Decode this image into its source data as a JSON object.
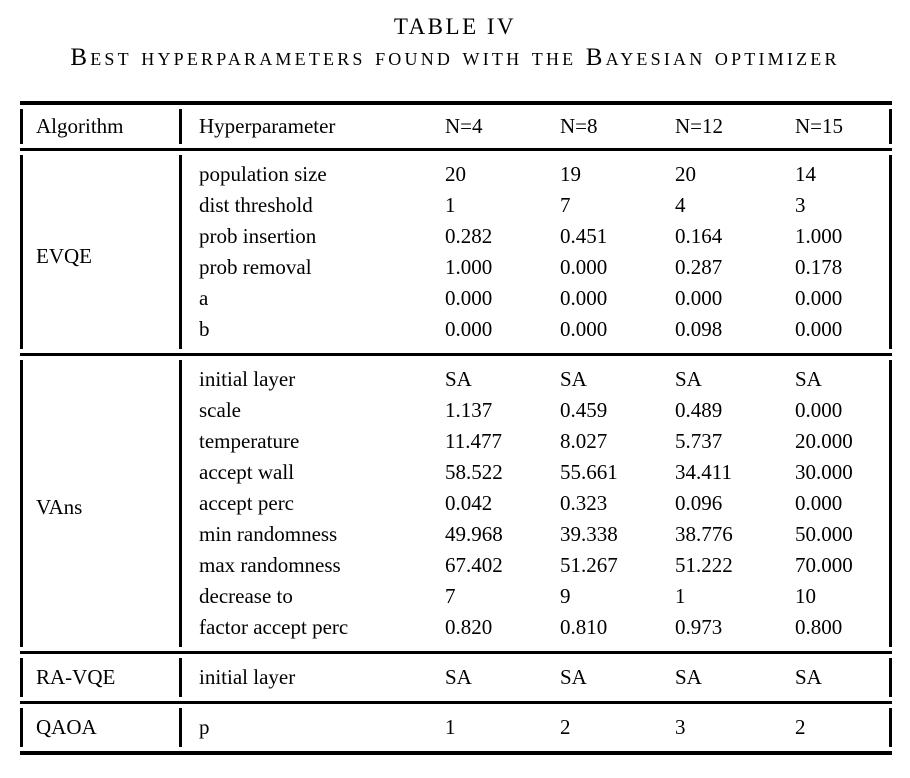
{
  "caption": {
    "title": "TABLE IV",
    "subtitle": "Best hyperparameters found with the Bayesian optimizer"
  },
  "table": {
    "columns": [
      "Algorithm",
      "Hyperparameter",
      "N=4",
      "N=8",
      "N=12",
      "N=15"
    ],
    "sections": [
      {
        "algorithm": "EVQE",
        "rows": [
          {
            "hyperparameter": "population size",
            "values": [
              "20",
              "19",
              "20",
              "14"
            ]
          },
          {
            "hyperparameter": "dist threshold",
            "values": [
              "1",
              "7",
              "4",
              "3"
            ]
          },
          {
            "hyperparameter": "prob insertion",
            "values": [
              "0.282",
              "0.451",
              "0.164",
              "1.000"
            ]
          },
          {
            "hyperparameter": "prob removal",
            "values": [
              "1.000",
              "0.000",
              "0.287",
              "0.178"
            ]
          },
          {
            "hyperparameter": "a",
            "values": [
              "0.000",
              "0.000",
              "0.000",
              "0.000"
            ]
          },
          {
            "hyperparameter": "b",
            "values": [
              "0.000",
              "0.000",
              "0.098",
              "0.000"
            ]
          }
        ]
      },
      {
        "algorithm": "VAns",
        "rows": [
          {
            "hyperparameter": "initial layer",
            "values": [
              "SA",
              "SA",
              "SA",
              "SA"
            ]
          },
          {
            "hyperparameter": "scale",
            "values": [
              "1.137",
              "0.459",
              "0.489",
              "0.000"
            ]
          },
          {
            "hyperparameter": "temperature",
            "values": [
              "11.477",
              "8.027",
              "5.737",
              "20.000"
            ]
          },
          {
            "hyperparameter": "accept wall",
            "values": [
              "58.522",
              "55.661",
              "34.411",
              "30.000"
            ]
          },
          {
            "hyperparameter": "accept perc",
            "values": [
              "0.042",
              "0.323",
              "0.096",
              "0.000"
            ]
          },
          {
            "hyperparameter": "min randomness",
            "values": [
              "49.968",
              "39.338",
              "38.776",
              "50.000"
            ]
          },
          {
            "hyperparameter": "max randomness",
            "values": [
              "67.402",
              "51.267",
              "51.222",
              "70.000"
            ]
          },
          {
            "hyperparameter": "decrease to",
            "values": [
              "7",
              "9",
              "1",
              "10"
            ]
          },
          {
            "hyperparameter": "factor accept perc",
            "values": [
              "0.820",
              "0.810",
              "0.973",
              "0.800"
            ]
          }
        ]
      },
      {
        "algorithm": "RA-VQE",
        "rows": [
          {
            "hyperparameter": "initial layer",
            "values": [
              "SA",
              "SA",
              "SA",
              "SA"
            ]
          }
        ]
      },
      {
        "algorithm": "QAOA",
        "rows": [
          {
            "hyperparameter": "p",
            "values": [
              "1",
              "2",
              "3",
              "2"
            ]
          }
        ]
      }
    ]
  },
  "colors": {
    "text": "#000000",
    "rule": "#000000",
    "background": "#ffffff"
  }
}
